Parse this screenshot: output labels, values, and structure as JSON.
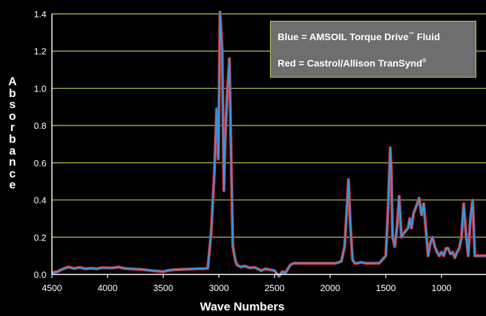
{
  "chart_data": {
    "type": "line",
    "xlabel": "Wave Numbers",
    "ylabel": "Absorbance",
    "xlim": [
      4500,
      600
    ],
    "ylim": [
      0,
      1.4
    ],
    "x_ticks": [
      "4500",
      "4000",
      "3500",
      "3000",
      "2500",
      "2000",
      "1500",
      "1000"
    ],
    "x_tick_values": [
      4500,
      4000,
      3500,
      3000,
      2500,
      2000,
      1500,
      1000
    ],
    "y_ticks": [
      "0.0",
      "0.2",
      "0.4",
      "0.6",
      "0.8",
      "1.0",
      "1.2",
      "1.4"
    ],
    "y_tick_values": [
      0,
      0.2,
      0.4,
      0.6,
      0.8,
      1.0,
      1.2,
      1.4
    ],
    "grid": true,
    "legend_position": "top-right",
    "legend": {
      "blue_prefix": "Blue = AMSOIL Torque Drive",
      "blue_sup": "™",
      "blue_suffix": " Fluid",
      "red_prefix": "Red = Castrol/Allison TranSynd",
      "red_sup": "®"
    },
    "colors": {
      "background": "#000000",
      "grid": "#b4d24a",
      "axis": "#ffffff",
      "blue": "#3399dd",
      "red": "#dd2222",
      "legend_bg": "#6e6e6e",
      "legend_border": "#b4d24a"
    },
    "series": [
      {
        "name": "AMSOIL Torque Drive Fluid",
        "x": [
          4500,
          4450,
          4400,
          4350,
          4300,
          4250,
          4200,
          4150,
          4100,
          4050,
          4000,
          3950,
          3900,
          3850,
          3800,
          3700,
          3600,
          3500,
          3450,
          3400,
          3300,
          3200,
          3100,
          3070,
          3040,
          3020,
          3005,
          2990,
          2970,
          2955,
          2945,
          2925,
          2905,
          2890,
          2875,
          2860,
          2850,
          2835,
          2800,
          2770,
          2720,
          2680,
          2650,
          2620,
          2580,
          2540,
          2500,
          2460,
          2430,
          2400,
          2360,
          2330,
          2300,
          2260,
          2200,
          2150,
          2100,
          2050,
          2000,
          1950,
          1900,
          1870,
          1850,
          1835,
          1820,
          1800,
          1780,
          1760,
          1720,
          1680,
          1650,
          1600,
          1560,
          1500,
          1480,
          1460,
          1450,
          1440,
          1420,
          1400,
          1380,
          1360,
          1340,
          1300,
          1285,
          1270,
          1250,
          1230,
          1200,
          1180,
          1160,
          1120,
          1100,
          1080,
          1060,
          1040,
          1020,
          1000,
          980,
          960,
          940,
          920,
          900,
          880,
          860,
          840,
          820,
          800,
          780,
          760,
          740,
          720,
          700,
          680,
          650,
          620,
          605,
          600
        ],
        "y": [
          0.01,
          0.015,
          0.03,
          0.04,
          0.032,
          0.038,
          0.03,
          0.033,
          0.03,
          0.036,
          0.035,
          0.035,
          0.04,
          0.032,
          0.03,
          0.027,
          0.02,
          0.015,
          0.022,
          0.025,
          0.028,
          0.03,
          0.032,
          0.22,
          0.55,
          0.89,
          0.62,
          1.41,
          1.2,
          0.45,
          0.7,
          0.97,
          1.16,
          0.65,
          0.15,
          0.1,
          0.07,
          0.05,
          0.04,
          0.045,
          0.035,
          0.038,
          0.03,
          0.02,
          0.03,
          0.025,
          0.02,
          -0.01,
          0.015,
          0.01,
          0.05,
          0.06,
          0.06,
          0.06,
          0.06,
          0.06,
          0.06,
          0.06,
          0.06,
          0.06,
          0.07,
          0.15,
          0.35,
          0.51,
          0.28,
          0.08,
          0.06,
          0.06,
          0.065,
          0.06,
          0.06,
          0.06,
          0.06,
          0.1,
          0.35,
          0.68,
          0.55,
          0.2,
          0.15,
          0.25,
          0.42,
          0.2,
          0.22,
          0.25,
          0.3,
          0.25,
          0.33,
          0.36,
          0.41,
          0.32,
          0.38,
          0.1,
          0.17,
          0.2,
          0.15,
          0.12,
          0.1,
          0.12,
          0.1,
          0.14,
          0.14,
          0.11,
          0.12,
          0.09,
          0.12,
          0.14,
          0.2,
          0.38,
          0.22,
          0.1,
          0.3,
          0.4,
          0.1,
          0.1,
          0.1,
          0.1,
          0.1,
          0.1
        ]
      }
    ]
  }
}
